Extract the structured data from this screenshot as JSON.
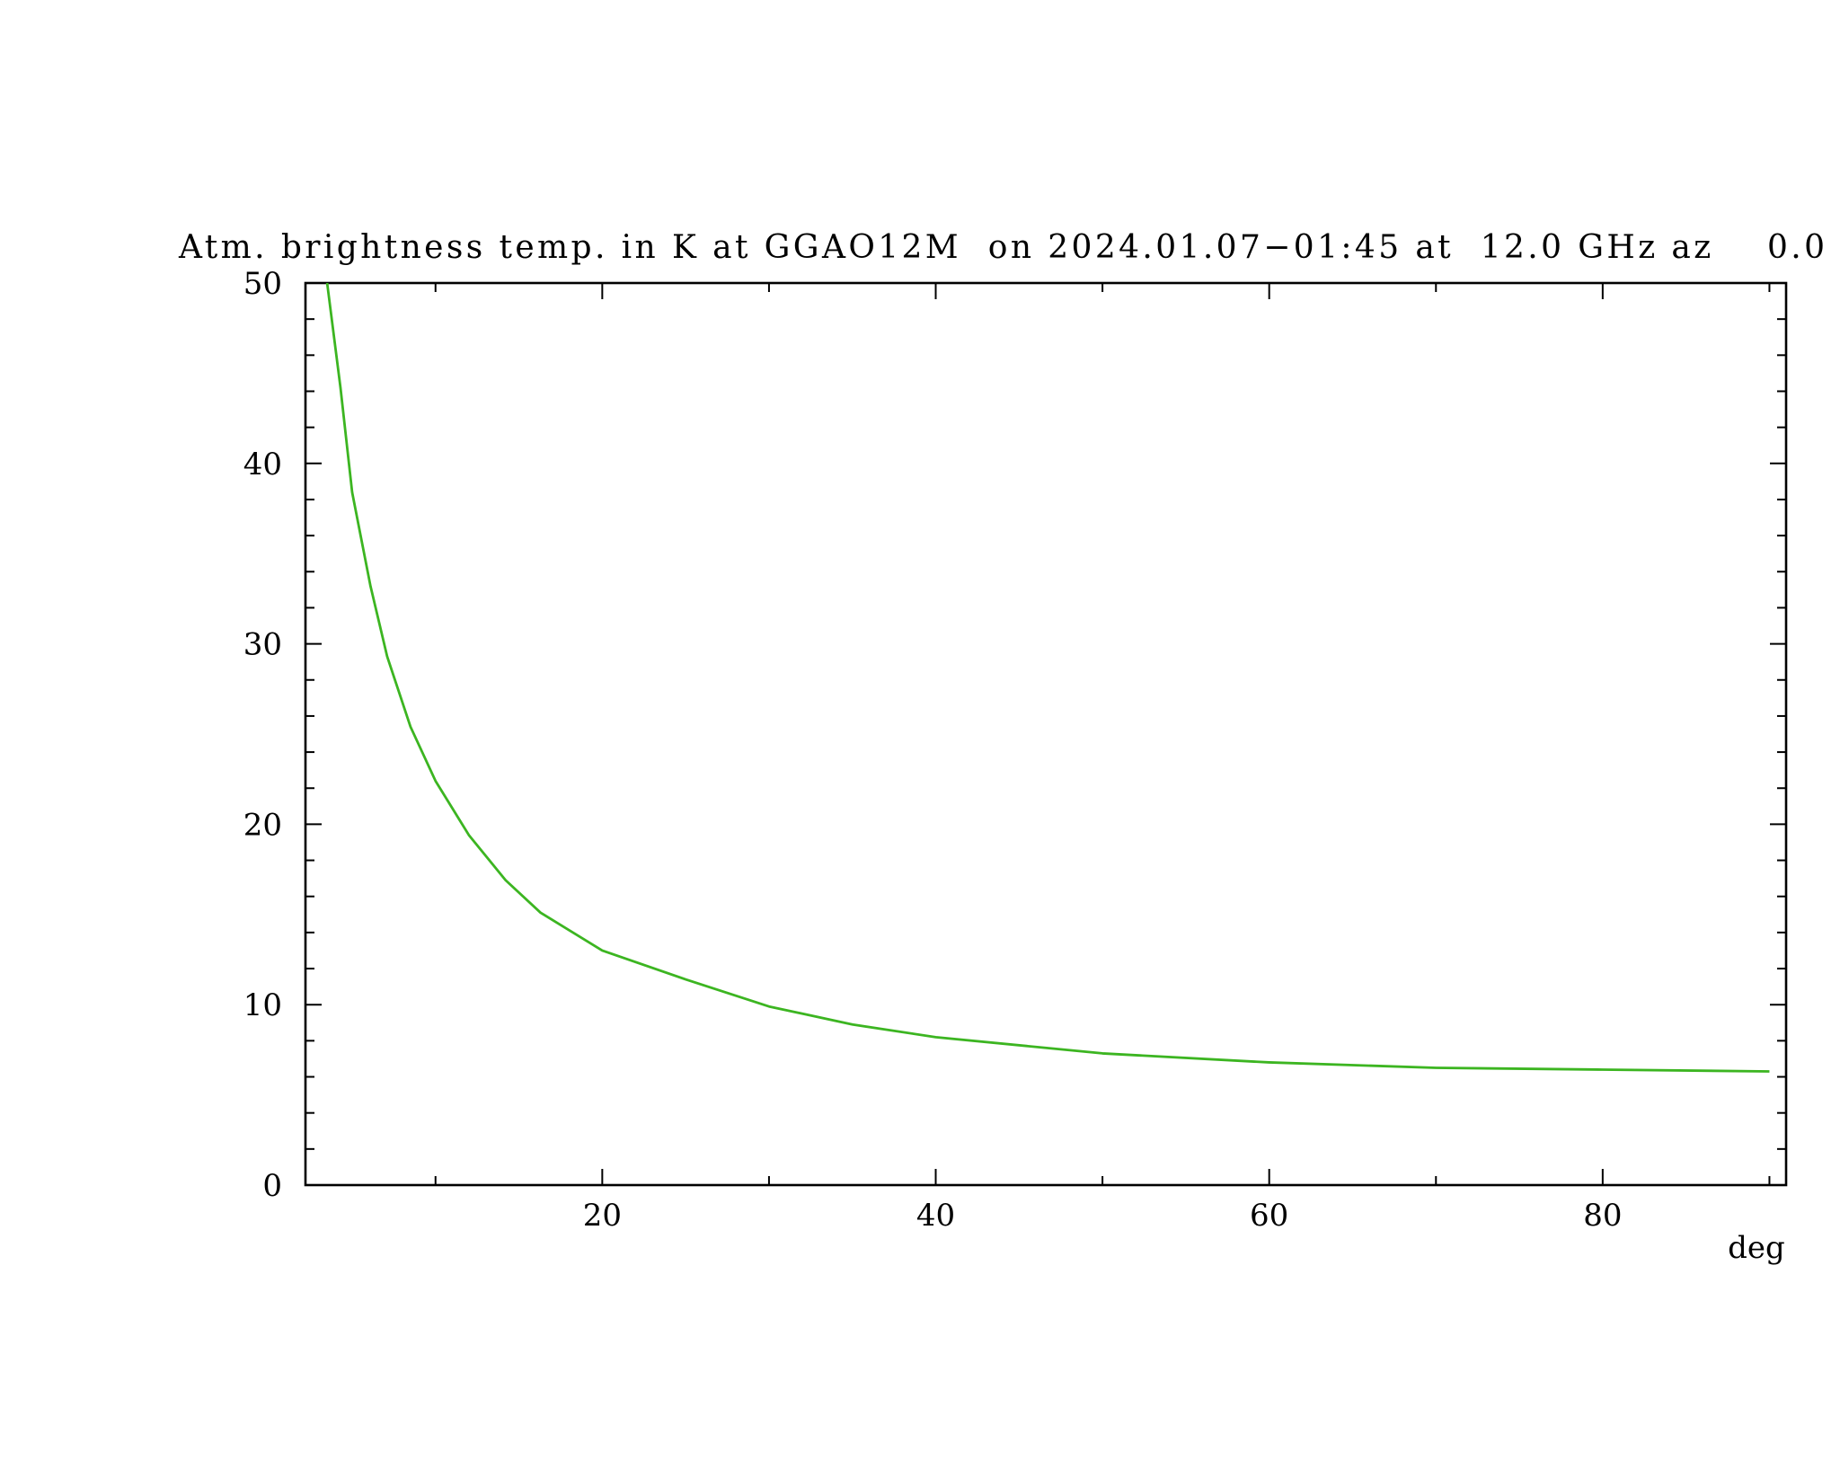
{
  "chart_data": {
    "type": "line",
    "title": "Atm. brightness temp. in K at GGAO12M  on 2024.01.07−01:45 at  12.0 GHz az    0.0",
    "x_label": "deg",
    "x": [
      3.5,
      4.3,
      5.0,
      6.1,
      7.1,
      8.5,
      10,
      12,
      14.2,
      16.3,
      20,
      25,
      30,
      35,
      40,
      50,
      60,
      70,
      80,
      90
    ],
    "series": [
      {
        "color": "#3cb521",
        "values": [
          50,
          44.2,
          38.4,
          33.2,
          29.3,
          25.4,
          22.4,
          19.4,
          16.9,
          15.1,
          13.0,
          11.4,
          9.9,
          8.9,
          8.2,
          7.3,
          6.8,
          6.5,
          6.4,
          6.3
        ]
      }
    ],
    "xlim": [
      2.2,
      91
    ],
    "xticks": [
      20,
      40,
      60,
      80
    ],
    "xminorticks": [
      10,
      30,
      50,
      70,
      90
    ],
    "ylim": [
      0,
      50
    ],
    "yticks": [
      0,
      10,
      20,
      30,
      40,
      50
    ],
    "yminorticks": [
      2,
      4,
      6,
      8,
      12,
      14,
      16,
      18,
      22,
      24,
      26,
      28,
      32,
      34,
      36,
      38,
      42,
      44,
      46,
      48
    ]
  }
}
